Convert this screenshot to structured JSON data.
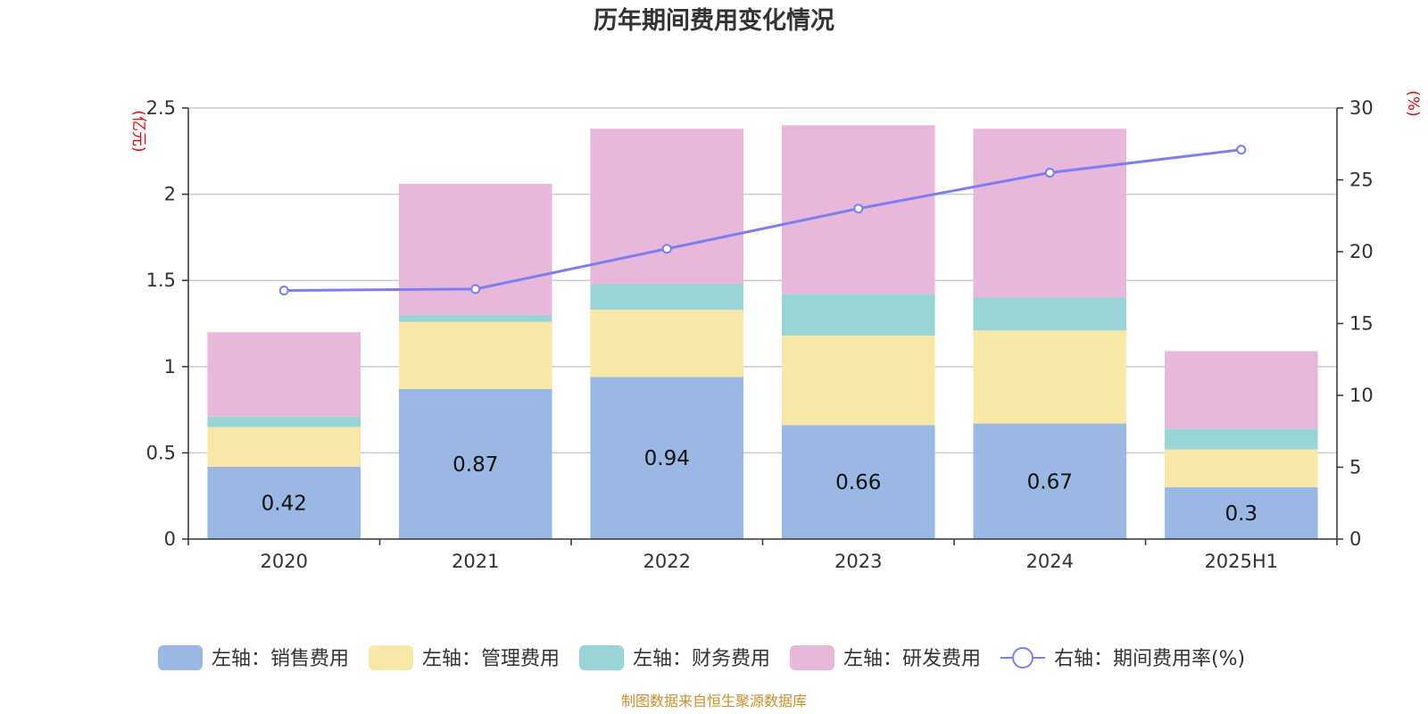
{
  "title": "历年期间费用变化情况",
  "left_axis_unit": "(亿元)",
  "right_axis_unit": "(%)",
  "footer": "制图数据来自恒生聚源数据库",
  "chart_data": {
    "type": "bar",
    "stacked": true,
    "categories": [
      "2020",
      "2021",
      "2022",
      "2023",
      "2024",
      "2025H1"
    ],
    "y_left": {
      "range": [
        0,
        2.5
      ],
      "ticks": [
        "0",
        "0.5",
        "1",
        "1.5",
        "2",
        "2.5"
      ]
    },
    "y_right": {
      "range": [
        0,
        30
      ],
      "ticks": [
        "0",
        "5",
        "10",
        "15",
        "20",
        "25",
        "30"
      ]
    },
    "grid": true,
    "legend_position": "bottom",
    "series": [
      {
        "name": "左轴：销售费用",
        "type": "bar",
        "axis": "left",
        "color": "#9ab8e3",
        "values": [
          0.42,
          0.87,
          0.94,
          0.66,
          0.67,
          0.3
        ],
        "labels": [
          "0.42",
          "0.87",
          "0.94",
          "0.66",
          "0.67",
          "0.3"
        ]
      },
      {
        "name": "左轴：管理费用",
        "type": "bar",
        "axis": "left",
        "color": "#f8e8a8",
        "values": [
          0.23,
          0.39,
          0.39,
          0.52,
          0.54,
          0.22
        ]
      },
      {
        "name": "左轴：财务费用",
        "type": "bar",
        "axis": "left",
        "color": "#99d5d6",
        "values": [
          0.06,
          0.04,
          0.15,
          0.24,
          0.19,
          0.12
        ]
      },
      {
        "name": "左轴：研发费用",
        "type": "bar",
        "axis": "left",
        "color": "#e8b8da",
        "values": [
          0.49,
          0.76,
          0.9,
          0.98,
          0.98,
          0.45
        ]
      },
      {
        "name": "右轴：期间费用率(%)",
        "type": "line",
        "axis": "right",
        "color": "#7b7ef0",
        "values": [
          17.3,
          17.4,
          20.2,
          23.0,
          25.5,
          27.1
        ]
      }
    ]
  }
}
